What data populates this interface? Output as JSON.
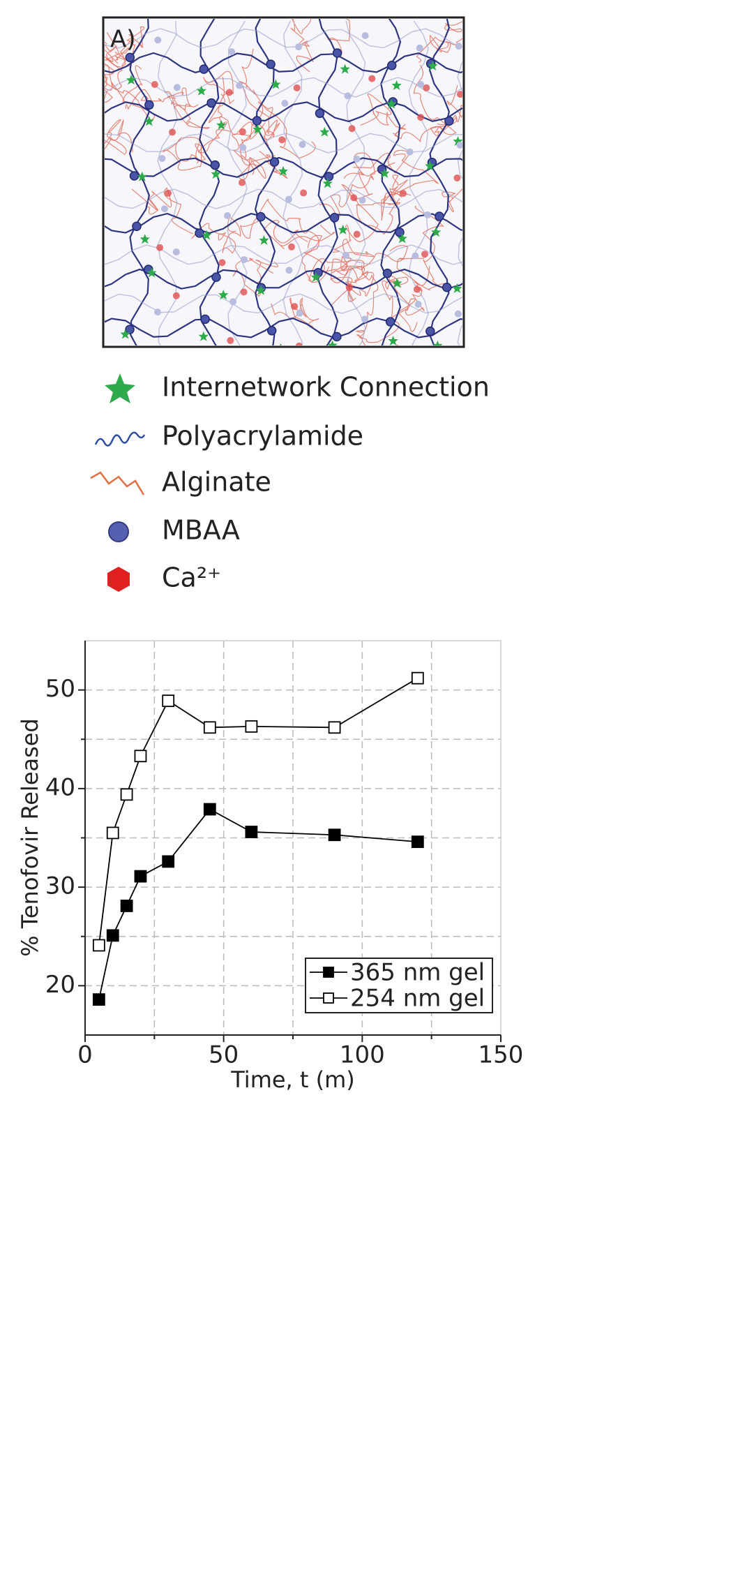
{
  "diagram": {
    "label": "A)",
    "legend": [
      "Internetwork Connection",
      "Polyacrylamide",
      "Alginate",
      "MBAA",
      "Ca²⁺"
    ]
  },
  "chart_data": {
    "type": "line",
    "xlabel": "Time, t (m)",
    "ylabel": "% Tenofovir Released",
    "x": [
      5,
      10,
      15,
      20,
      30,
      45,
      60,
      90,
      120
    ],
    "series": [
      {
        "name": "365 nm gel",
        "color": "#000000",
        "marker": "filled-square",
        "values": [
          18.6,
          25.1,
          28.1,
          31.1,
          32.6,
          37.9,
          35.6,
          35.3,
          34.6
        ]
      },
      {
        "name": "254 nm gel",
        "color": "#000000",
        "marker": "open-square",
        "values": [
          24.1,
          35.5,
          39.4,
          43.3,
          48.9,
          46.2,
          46.3,
          46.2,
          51.2
        ]
      }
    ],
    "xlim": [
      0,
      150
    ],
    "xticks": [
      0,
      50,
      100,
      150
    ],
    "xminorticks": [
      25,
      75,
      125
    ],
    "ylim": [
      15,
      55
    ],
    "yticks": [
      20,
      30,
      40,
      50
    ],
    "yminorticks": [
      25,
      35,
      45
    ],
    "grid": true,
    "legend": "lower right"
  }
}
